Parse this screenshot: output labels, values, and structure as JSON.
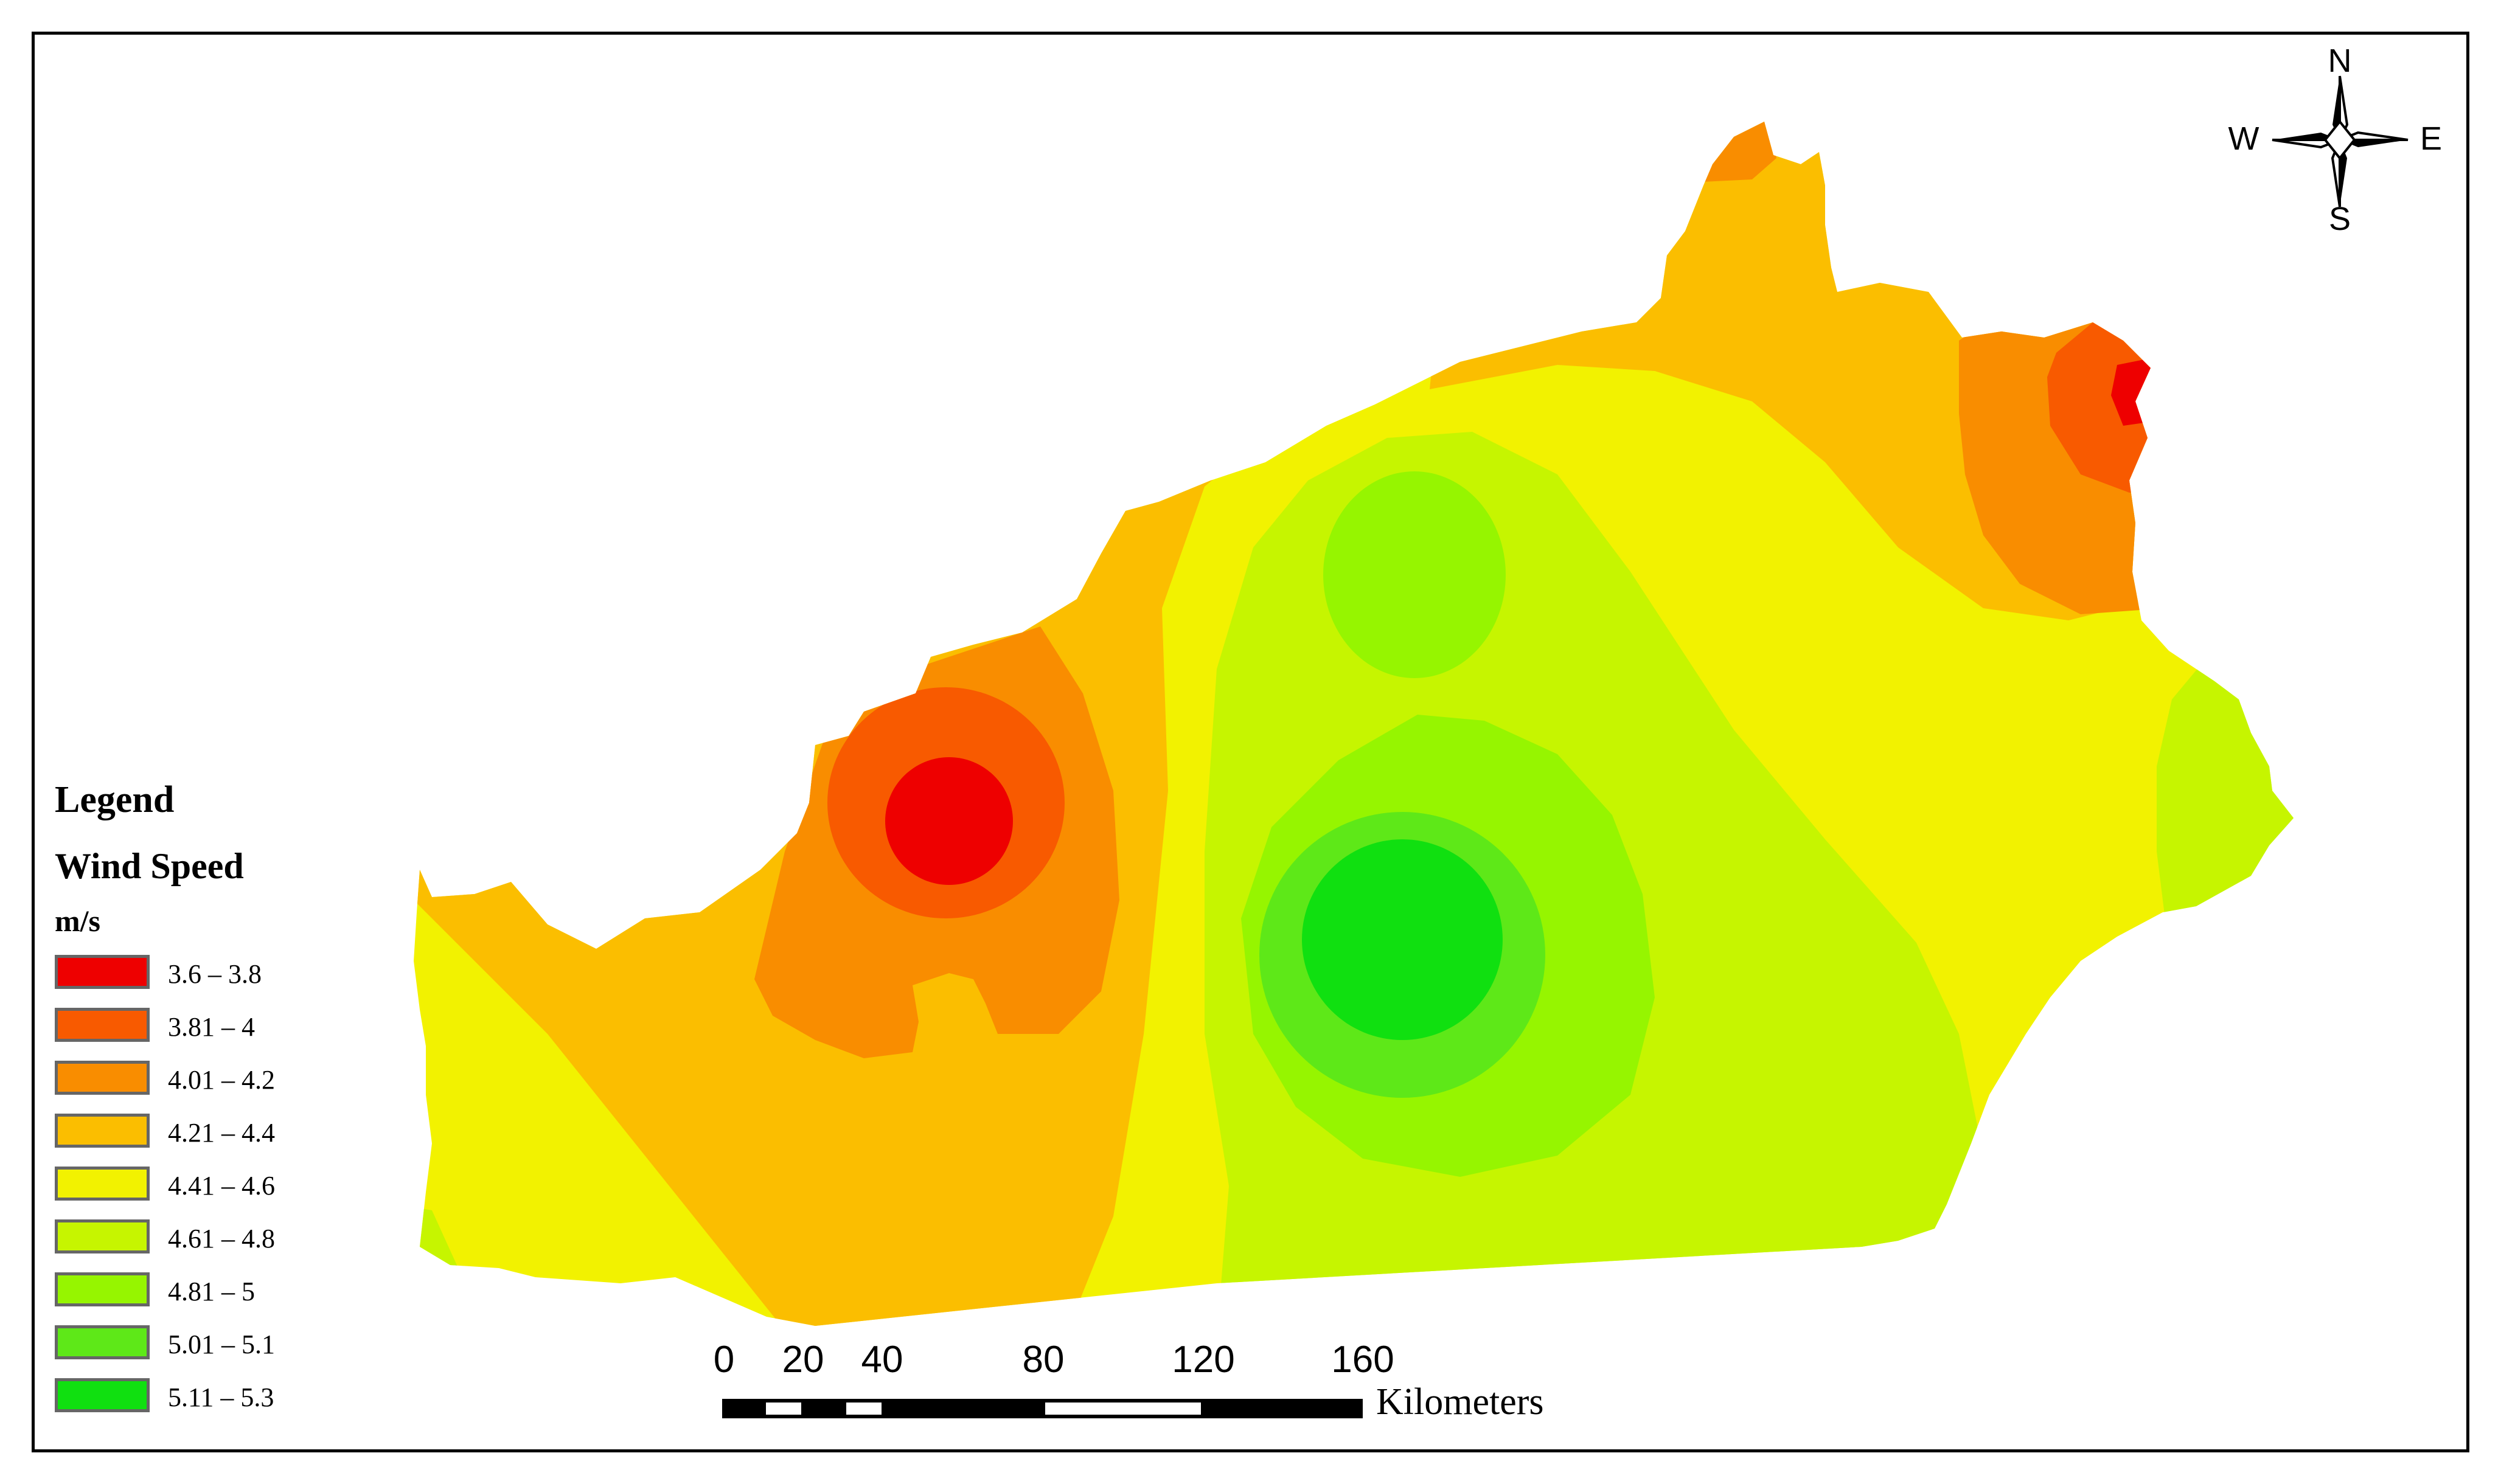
{
  "legend": {
    "title": "Legend",
    "field": "Wind Speed",
    "unit": "m/s",
    "classes": [
      {
        "label": "3.6 – 3.8",
        "color": "#ee0000"
      },
      {
        "label": "3.81 – 4",
        "color": "#f85a00"
      },
      {
        "label": "4.01 – 4.2",
        "color": "#f98d00"
      },
      {
        "label": "4.21 – 4.4",
        "color": "#fbbe00"
      },
      {
        "label": "4.41 – 4.6",
        "color": "#f2f200"
      },
      {
        "label": "4.61 – 4.8",
        "color": "#c6f500"
      },
      {
        "label": "4.81 – 5",
        "color": "#96f500"
      },
      {
        "label": "5.01 – 5.1",
        "color": "#5ee818"
      },
      {
        "label": "5.11 – 5.3",
        "color": "#10e010"
      }
    ]
  },
  "scale_bar": {
    "ticks": [
      "0",
      "20",
      "40",
      "80",
      "120",
      "160"
    ],
    "units": "Kilometers"
  },
  "north_arrow": {
    "n": "N",
    "s": "S",
    "e": "E",
    "w": "W"
  }
}
